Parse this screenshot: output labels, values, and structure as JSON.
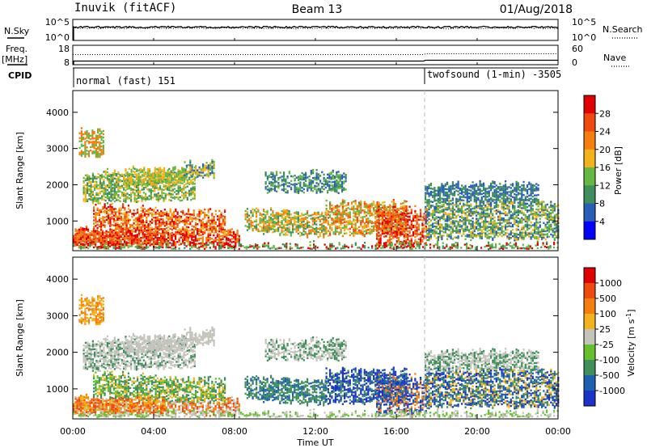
{
  "header": {
    "station": "Inuvik (fitACF)",
    "beam": "Beam 13",
    "date": "01/Aug/2018"
  },
  "noise_panel": {
    "left_label": "N.Sky",
    "right_label": "N.Search",
    "left_ticks": [
      "10^5",
      "10^0"
    ],
    "right_ticks": [
      "10^5",
      "10^0"
    ]
  },
  "freq_panel": {
    "left_label_1": "Freq.",
    "left_label_2": "[MHz]",
    "right_label": "Nave",
    "left_ticks": [
      "18",
      "8"
    ],
    "right_ticks": [
      "60",
      "0"
    ]
  },
  "cpid_panel": {
    "label": "CPID",
    "programs": [
      {
        "name": "normal (fast) 151",
        "start_hour": 0
      },
      {
        "name": "twofsound (1-min) -3505",
        "start_hour": 17.4
      }
    ]
  },
  "x_axis": {
    "label": "Time UT",
    "ticks": [
      "00:00",
      "04:00",
      "08:00",
      "12:00",
      "16:00",
      "20:00",
      "00:00"
    ],
    "range_hours": [
      0,
      24
    ],
    "mode_change_hour": 17.4
  },
  "chart_data": [
    {
      "type": "heatmap",
      "parameter": "power",
      "ylabel": "Slant Range [km]",
      "ylim": [
        180,
        4600
      ],
      "yticks": [
        "1000",
        "2000",
        "3000",
        "4000"
      ],
      "colorbar": {
        "label": "Power [dB]",
        "tick_labels": [
          "4",
          "8",
          "12",
          "16",
          "20",
          "24",
          "28"
        ],
        "colors": [
          "#0000ff",
          "#2a5fb8",
          "#3f8f5a",
          "#66b744",
          "#f2b21b",
          "#f57e0f",
          "#ee4a10",
          "#e10000"
        ]
      }
    },
    {
      "type": "heatmap",
      "parameter": "velocity",
      "ylabel": "Slant Range [km]",
      "ylim": [
        180,
        4600
      ],
      "yticks": [
        "1000",
        "2000",
        "3000",
        "4000"
      ],
      "colorbar": {
        "label_text": "Velocity [m s",
        "label_sup": "-1",
        "label_close": "]",
        "tick_labels": [
          "1000",
          "500",
          "100",
          "25",
          "-25",
          "-100",
          "-500",
          "-1000"
        ],
        "colors": [
          "#1b33c6",
          "#1e5fb0",
          "#3f8f5a",
          "#66c02e",
          "#c4c4bc",
          "#f2b21b",
          "#f57e0f",
          "#ee4a10",
          "#e10000"
        ]
      }
    }
  ]
}
